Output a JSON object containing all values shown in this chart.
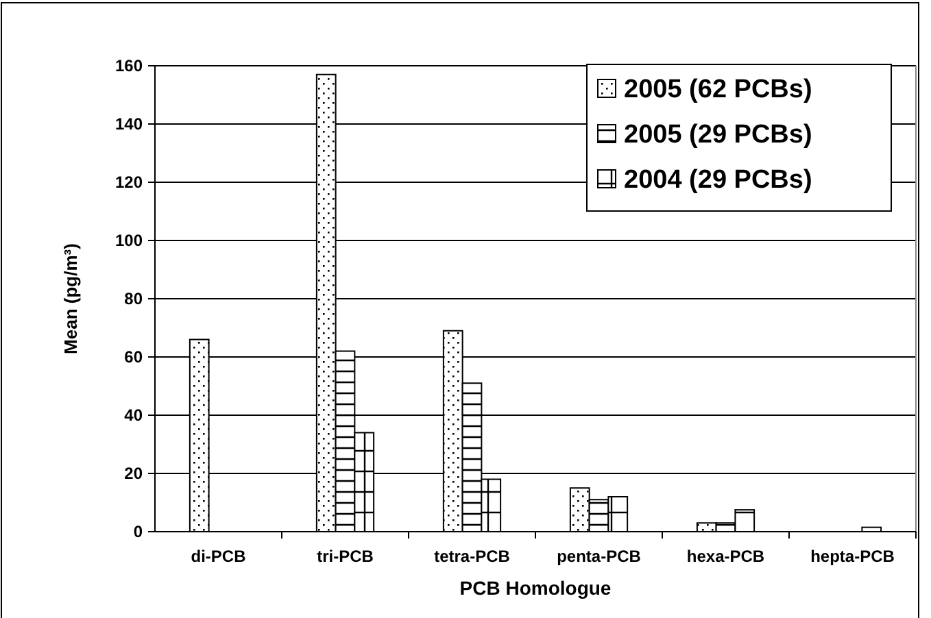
{
  "chart_data": {
    "type": "bar",
    "xlabel": "PCB Homologue",
    "ylabel": "Mean (pg/m³)",
    "categories": [
      "di-PCB",
      "tri-PCB",
      "tetra-PCB",
      "penta-PCB",
      "hexa-PCB",
      "hepta-PCB"
    ],
    "series": [
      {
        "name": "2005 (62 PCBs)",
        "color": "#000000",
        "values": [
          66,
          157,
          69,
          15,
          3,
          null
        ]
      },
      {
        "name": "2005 (29 PCBs)",
        "color": "#000000",
        "values": [
          null,
          62,
          51,
          11,
          3,
          null
        ]
      },
      {
        "name": "2004 (29 PCBs)",
        "color": "#000000",
        "values": [
          null,
          34,
          18,
          12,
          7.5,
          1.5
        ]
      }
    ],
    "ylim": [
      0,
      160
    ],
    "yticks": [
      0,
      20,
      40,
      60,
      80,
      100,
      120,
      140,
      160
    ],
    "grid": "y",
    "legend": "top right"
  }
}
